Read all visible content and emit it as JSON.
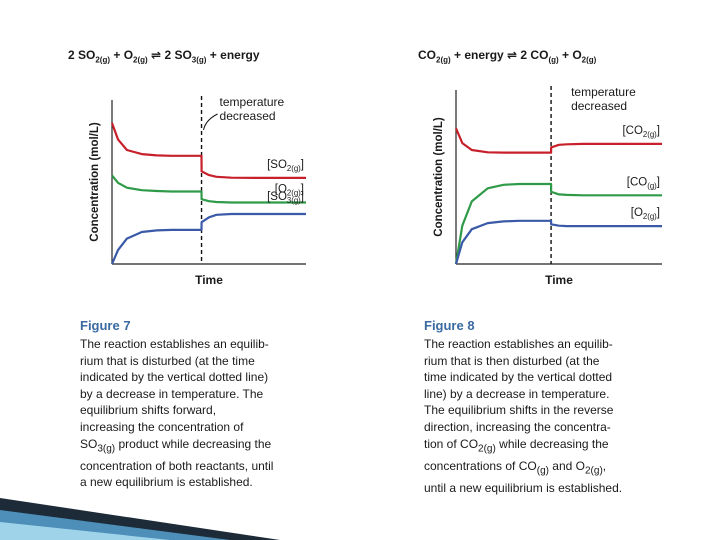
{
  "slide": {
    "background": "#ffffff"
  },
  "chart_data": [
    {
      "type": "line",
      "equation": "2 SO2(g) + O2(g) ⇌ 2 SO3(g) + energy",
      "xlabel": "Time",
      "ylabel": "Concentration (mol/L)",
      "annotation": "temperature decreased",
      "x": [
        0,
        0.4,
        1,
        2,
        3,
        4,
        5,
        6,
        6.001,
        6.5,
        7,
        8,
        10,
        13
      ],
      "xlim": [
        0,
        13
      ],
      "ylim": [
        0,
        10
      ],
      "event_x": 6,
      "series": [
        {
          "name": "[SO2(g)]",
          "color": "#c8202b",
          "values": [
            8.6,
            7.6,
            6.95,
            6.7,
            6.62,
            6.6,
            6.6,
            6.6,
            5.65,
            5.42,
            5.32,
            5.26,
            5.25,
            5.25
          ]
        },
        {
          "name": "[O2(g)]",
          "color": "#2f9a48",
          "values": [
            5.4,
            4.95,
            4.65,
            4.5,
            4.45,
            4.42,
            4.42,
            4.42,
            3.95,
            3.83,
            3.78,
            3.75,
            3.75,
            3.75
          ]
        },
        {
          "name": "[SO3(g)]",
          "color": "#3a5aa8",
          "values": [
            0.0,
            0.85,
            1.55,
            1.95,
            2.05,
            2.08,
            2.08,
            2.08,
            2.55,
            2.85,
            3.0,
            3.05,
            3.05,
            3.05
          ]
        }
      ],
      "figure_label": "Figure 7",
      "caption_lines": [
        "The reaction establishes an equilib-",
        "rium that is disturbed (at the time",
        "indicated by the vertical dotted line)",
        "by a decrease in temperature. The",
        "equilibrium shifts forward,",
        "increasing the concentration of",
        "SO3(g) product while decreasing the",
        "concentration of both reactants, until",
        "a new equilibrium is established."
      ]
    },
    {
      "type": "line",
      "equation": "CO2(g) + energy ⇌ 2 CO(g) + O2(g)",
      "xlabel": "Time",
      "ylabel": "Concentration (mol/L)",
      "annotation": "temperature decreased",
      "x": [
        0,
        0.4,
        1,
        2,
        3,
        4,
        5,
        6,
        6.001,
        6.5,
        7,
        8,
        10,
        13
      ],
      "xlim": [
        0,
        13
      ],
      "ylim": [
        0,
        10
      ],
      "event_x": 6,
      "series": [
        {
          "name": "[CO2(g)]",
          "color": "#c8202b",
          "values": [
            7.8,
            6.95,
            6.55,
            6.42,
            6.4,
            6.4,
            6.4,
            6.4,
            6.7,
            6.85,
            6.88,
            6.9,
            6.9,
            6.9
          ]
        },
        {
          "name": "[CO(g)]",
          "color": "#2f9a48",
          "values": [
            0.0,
            2.2,
            3.6,
            4.35,
            4.55,
            4.6,
            4.6,
            4.6,
            4.15,
            4.0,
            3.97,
            3.95,
            3.95,
            3.95
          ]
        },
        {
          "name": "[O2(g)]",
          "color": "#3a5aa8",
          "values": [
            0.0,
            1.25,
            2.0,
            2.35,
            2.45,
            2.48,
            2.48,
            2.48,
            2.28,
            2.2,
            2.18,
            2.18,
            2.18,
            2.18
          ]
        }
      ],
      "figure_label": "Figure 8",
      "caption_lines": [
        "The reaction establishes an equilib-",
        "rium that is then disturbed (at the",
        "time indicated by the vertical dotted",
        "line) by a decrease in temperature.",
        "The equilibrium shifts in the reverse",
        "direction, increasing the concentra-",
        "tion of CO2(g) while decreasing the",
        "concentrations of CO(g) and O2(g),",
        "until a new equilibrium is established."
      ]
    }
  ]
}
